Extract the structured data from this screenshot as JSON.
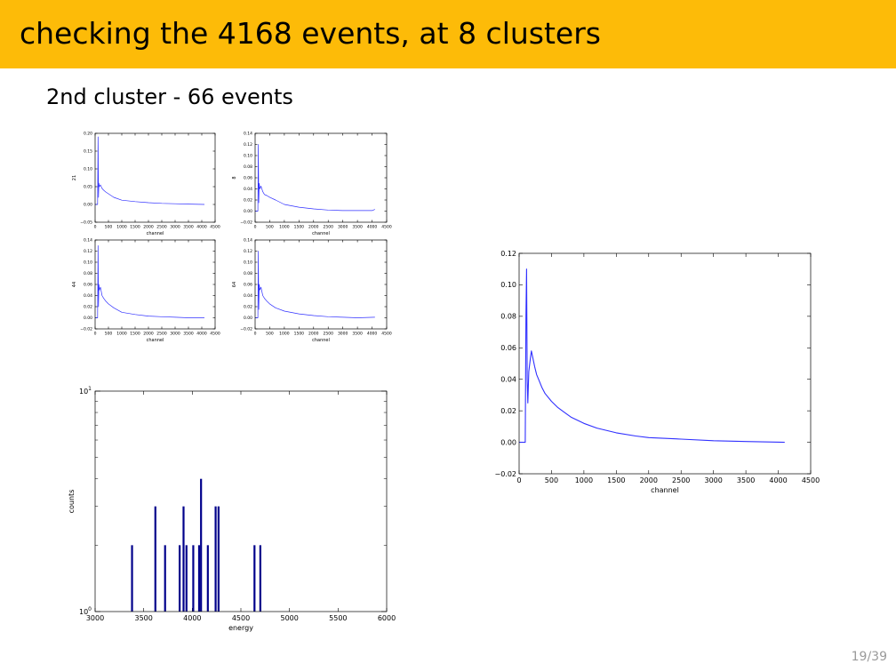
{
  "slide": {
    "title": "checking the 4168 events, at 8 clusters",
    "subtitle": "2nd cluster - 66 events",
    "page": "19/39"
  },
  "colors": {
    "header": "#fdbb08",
    "line": "#3030ff",
    "bar": "#00008b"
  },
  "chart_data": [
    {
      "id": "small-1",
      "type": "line",
      "xlabel": "channel",
      "ylabel": "21",
      "xlim": [
        0,
        4500
      ],
      "ylim": [
        -0.05,
        0.2
      ],
      "xticks": [
        0,
        500,
        1000,
        1500,
        2000,
        2500,
        3000,
        3500,
        4000,
        4500
      ],
      "yticks": [
        -0.05,
        0.0,
        0.05,
        0.1,
        0.15,
        0.2
      ],
      "ytick_labels": [
        "−0.05",
        "0.00",
        "0.05",
        "0.10",
        "0.15",
        "0.20"
      ],
      "series": [
        {
          "x": [
            0,
            60,
            95,
            110,
            125,
            140,
            160,
            200,
            260,
            320,
            400,
            500,
            700,
            1000,
            1500,
            2000,
            2500,
            3000,
            3500,
            4100
          ],
          "y": [
            0,
            0,
            0,
            0.19,
            0.02,
            0.06,
            0.05,
            0.055,
            0.045,
            0.04,
            0.035,
            0.03,
            0.02,
            0.012,
            0.008,
            0.005,
            0.003,
            0.002,
            0.001,
            0.0
          ]
        }
      ]
    },
    {
      "id": "small-2",
      "type": "line",
      "xlabel": "channel",
      "ylabel": "8",
      "xlim": [
        0,
        4500
      ],
      "ylim": [
        -0.02,
        0.14
      ],
      "xticks": [
        0,
        500,
        1000,
        1500,
        2000,
        2500,
        3000,
        3500,
        4000,
        4500
      ],
      "yticks": [
        -0.02,
        0.0,
        0.02,
        0.04,
        0.06,
        0.08,
        0.1,
        0.12,
        0.14
      ],
      "ytick_labels": [
        "−0.02",
        "0.00",
        "0.02",
        "0.04",
        "0.06",
        "0.08",
        "0.10",
        "0.12",
        "0.14"
      ],
      "series": [
        {
          "x": [
            0,
            60,
            95,
            110,
            125,
            140,
            160,
            200,
            260,
            320,
            400,
            500,
            700,
            1000,
            1500,
            2000,
            2500,
            3000,
            3500,
            4000,
            4100
          ],
          "y": [
            0,
            0,
            0,
            0.12,
            0.015,
            0.05,
            0.04,
            0.045,
            0.035,
            0.03,
            0.028,
            0.025,
            0.02,
            0.012,
            0.007,
            0.004,
            0.002,
            0.001,
            0.001,
            0.001,
            0.003
          ]
        }
      ]
    },
    {
      "id": "small-3",
      "type": "line",
      "xlabel": "channel",
      "ylabel": "44",
      "xlim": [
        0,
        4500
      ],
      "ylim": [
        -0.02,
        0.14
      ],
      "xticks": [
        0,
        500,
        1000,
        1500,
        2000,
        2500,
        3000,
        3500,
        4000,
        4500
      ],
      "yticks": [
        -0.02,
        0.0,
        0.02,
        0.04,
        0.06,
        0.08,
        0.1,
        0.12,
        0.14
      ],
      "ytick_labels": [
        "−0.02",
        "0.00",
        "0.02",
        "0.04",
        "0.06",
        "0.08",
        "0.10",
        "0.12",
        "0.14"
      ],
      "series": [
        {
          "x": [
            0,
            60,
            95,
            110,
            125,
            140,
            160,
            200,
            260,
            320,
            400,
            500,
            700,
            1000,
            1500,
            2000,
            2500,
            3000,
            3500,
            4100
          ],
          "y": [
            0,
            0,
            0,
            0.13,
            0.02,
            0.06,
            0.05,
            0.055,
            0.04,
            0.035,
            0.03,
            0.025,
            0.018,
            0.01,
            0.006,
            0.003,
            0.002,
            0.001,
            0.0,
            0.0
          ]
        }
      ]
    },
    {
      "id": "small-4",
      "type": "line",
      "xlabel": "channel",
      "ylabel": "64",
      "xlim": [
        0,
        4500
      ],
      "ylim": [
        -0.02,
        0.14
      ],
      "xticks": [
        0,
        500,
        1000,
        1500,
        2000,
        2500,
        3000,
        3500,
        4000,
        4500
      ],
      "yticks": [
        -0.02,
        0.0,
        0.02,
        0.04,
        0.06,
        0.08,
        0.1,
        0.12,
        0.14
      ],
      "ytick_labels": [
        "−0.02",
        "0.00",
        "0.02",
        "0.04",
        "0.06",
        "0.08",
        "0.10",
        "0.12",
        "0.14"
      ],
      "series": [
        {
          "x": [
            0,
            60,
            95,
            110,
            125,
            140,
            160,
            200,
            260,
            320,
            400,
            500,
            700,
            1000,
            1500,
            2000,
            2500,
            3000,
            3500,
            4100
          ],
          "y": [
            0,
            0,
            0,
            0.12,
            0.015,
            0.06,
            0.05,
            0.055,
            0.04,
            0.035,
            0.03,
            0.025,
            0.018,
            0.012,
            0.007,
            0.004,
            0.002,
            0.001,
            0.0,
            0.001
          ]
        }
      ]
    },
    {
      "id": "histogram",
      "type": "bar",
      "xlabel": "energy",
      "ylabel": "counts",
      "xlim": [
        3000,
        6000
      ],
      "ylog": true,
      "ylim": [
        1,
        10
      ],
      "xticks": [
        3000,
        3500,
        4000,
        4500,
        5000,
        5500,
        6000
      ],
      "ytick_labels": [
        "10^0",
        "10^1"
      ],
      "bar_width": 20,
      "bars": [
        {
          "x": 3380,
          "count": 2
        },
        {
          "x": 3620,
          "count": 3
        },
        {
          "x": 3720,
          "count": 2
        },
        {
          "x": 3870,
          "count": 2
        },
        {
          "x": 3910,
          "count": 3
        },
        {
          "x": 3940,
          "count": 2
        },
        {
          "x": 4010,
          "count": 2
        },
        {
          "x": 4070,
          "count": 2
        },
        {
          "x": 4090,
          "count": 4
        },
        {
          "x": 4160,
          "count": 2
        },
        {
          "x": 4240,
          "count": 3
        },
        {
          "x": 4270,
          "count": 3
        },
        {
          "x": 4640,
          "count": 2
        },
        {
          "x": 4700,
          "count": 2
        }
      ]
    },
    {
      "id": "average",
      "type": "line",
      "xlabel": "channel",
      "ylabel": "",
      "xlim": [
        0,
        4500
      ],
      "ylim": [
        -0.02,
        0.12
      ],
      "xticks": [
        0,
        500,
        1000,
        1500,
        2000,
        2500,
        3000,
        3500,
        4000,
        4500
      ],
      "yticks": [
        -0.02,
        0.0,
        0.02,
        0.04,
        0.06,
        0.08,
        0.1,
        0.12
      ],
      "ytick_labels": [
        "−0.02",
        "0.00",
        "0.02",
        "0.04",
        "0.06",
        "0.08",
        "0.10",
        "0.12"
      ],
      "series": [
        {
          "x": [
            0,
            70,
            95,
            105,
            115,
            125,
            135,
            150,
            170,
            190,
            210,
            240,
            270,
            300,
            350,
            400,
            500,
            600,
            700,
            800,
            1000,
            1200,
            1500,
            1800,
            2000,
            2500,
            3000,
            3500,
            4100
          ],
          "y": [
            0,
            0,
            0,
            0.08,
            0.11,
            0.04,
            0.025,
            0.045,
            0.052,
            0.058,
            0.054,
            0.048,
            0.043,
            0.04,
            0.035,
            0.031,
            0.026,
            0.022,
            0.019,
            0.016,
            0.012,
            0.009,
            0.006,
            0.004,
            0.003,
            0.002,
            0.001,
            0.0005,
            0.0
          ]
        }
      ]
    }
  ]
}
